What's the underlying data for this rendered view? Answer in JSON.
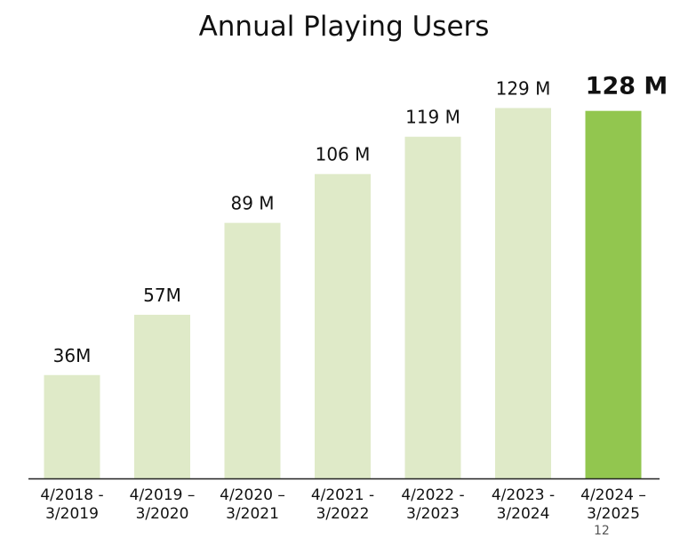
{
  "chart_data": {
    "type": "bar",
    "title": "Annual Playing Users",
    "xlabel": "",
    "ylabel": "",
    "categories": [
      [
        "4/2018 -",
        "3/2019"
      ],
      [
        "4/2019 –",
        "3/2020"
      ],
      [
        "4/2020 –",
        "3/2021"
      ],
      [
        "4/2021 -",
        "3/2022"
      ],
      [
        "4/2022 -",
        "3/2023"
      ],
      [
        "4/2023 -",
        "3/2024"
      ],
      [
        "4/2024 –",
        "3/2025"
      ]
    ],
    "values": [
      36,
      57,
      89,
      106,
      119,
      129,
      128
    ],
    "unit": "M",
    "data_labels": [
      "36M",
      "57M",
      "89 M",
      "106 M",
      "119 M",
      "129 M",
      "128 M"
    ],
    "highlight_index": 6,
    "ylim": [
      0,
      130
    ],
    "grid": false,
    "legend": "none",
    "colors": {
      "bar": "#dfeac8",
      "highlight": "#92c64f",
      "axis": "#222222"
    }
  },
  "footer": {
    "page_mark": "12"
  }
}
